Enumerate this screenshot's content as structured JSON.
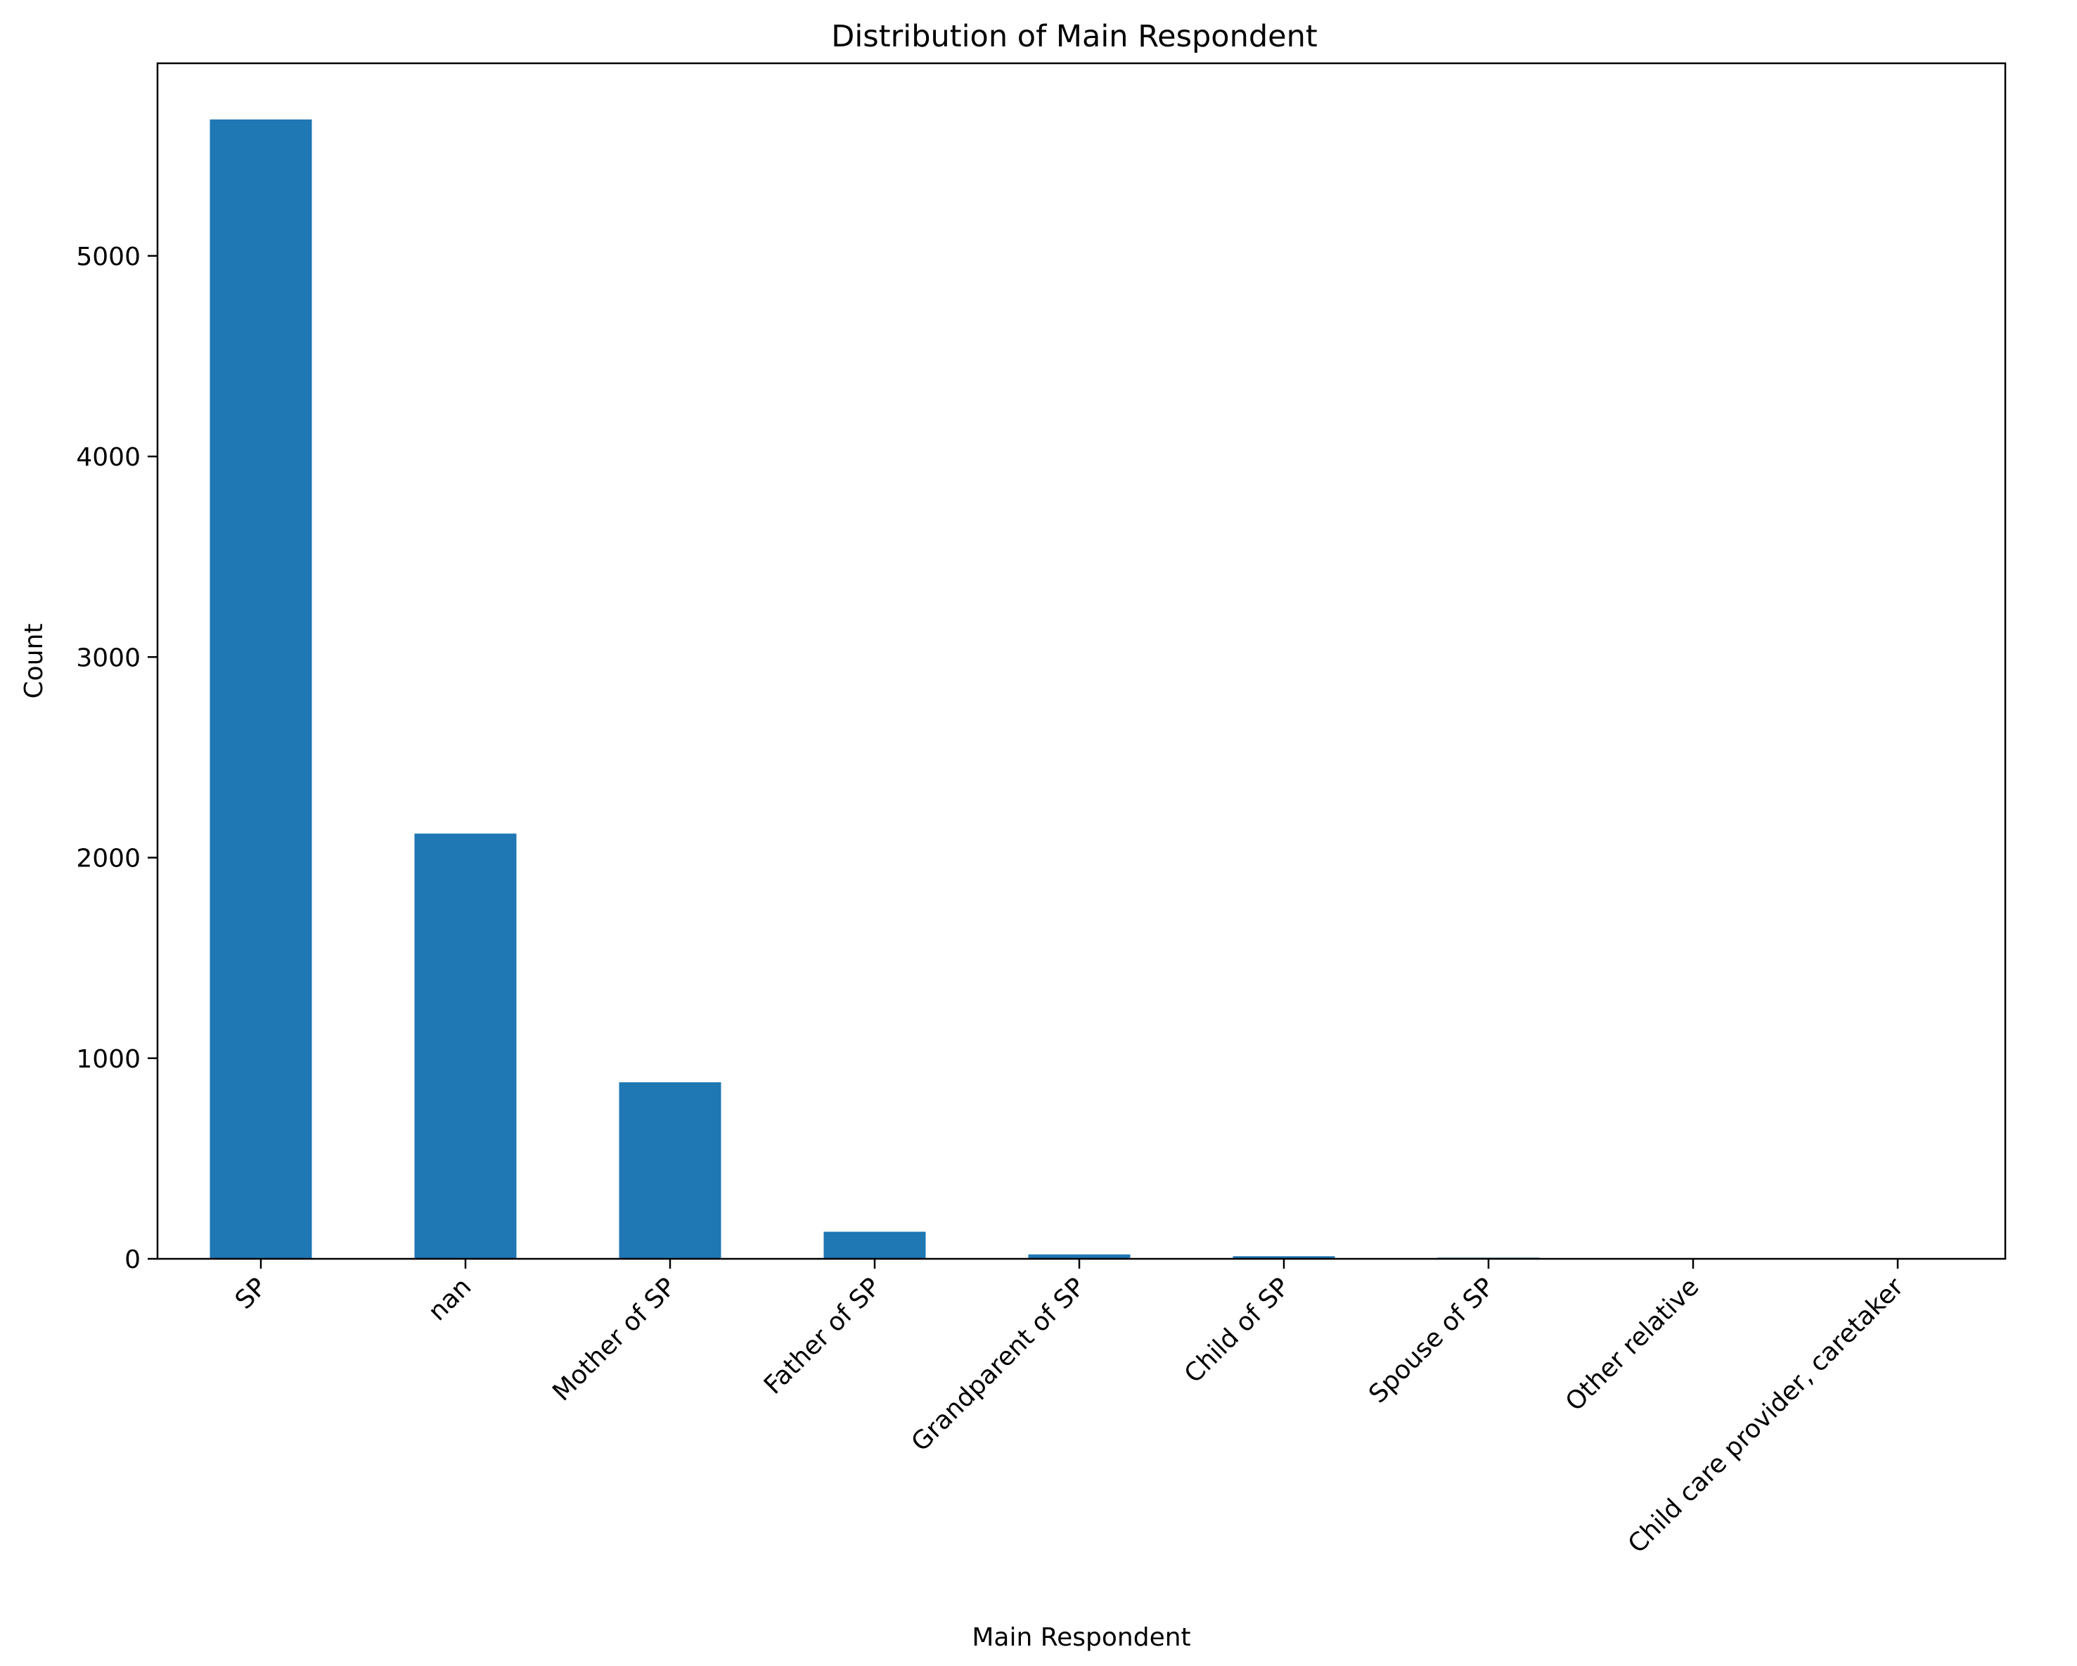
{
  "chart_data": {
    "type": "bar",
    "title": "Distribution of Main Respondent",
    "xlabel": "Main Respondent",
    "ylabel": "Count",
    "categories": [
      "SP",
      "nan",
      "Mother of SP",
      "Father of SP",
      "Grandparent of SP",
      "Child of SP",
      "Spouse of SP",
      "Other relative",
      "Child care provider, caretaker"
    ],
    "values": [
      5680,
      2120,
      880,
      135,
      22,
      13,
      6,
      3,
      2
    ],
    "ylim": [
      0,
      5960
    ],
    "yticks": [
      0,
      1000,
      2000,
      3000,
      4000,
      5000
    ],
    "xtick_rotation": -45,
    "grid": false,
    "legend": "none",
    "bar_color": "#1f77b4"
  }
}
